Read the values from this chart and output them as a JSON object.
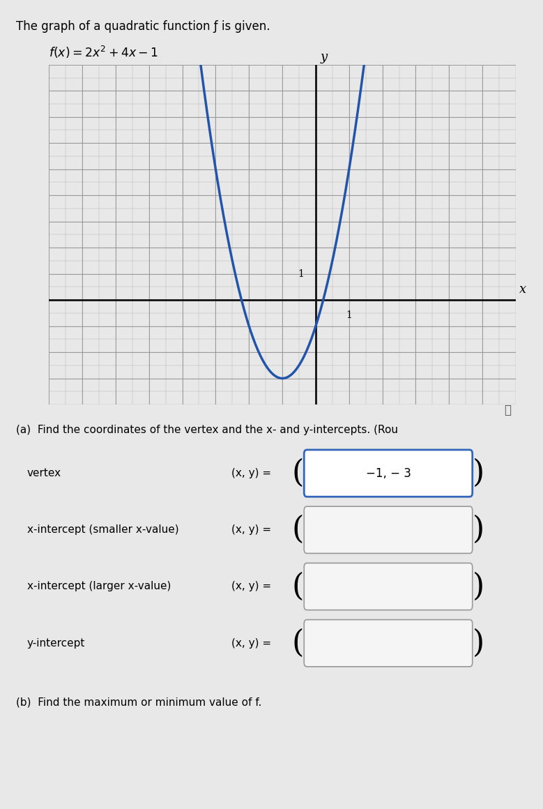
{
  "title_text": "The graph of a quadratic function ƒ is given.",
  "bg_color": "#e8e8e8",
  "graph_bg": "#d4d4d4",
  "curve_color": "#2255aa",
  "axis_color": "#111111",
  "grid_major_color": "#aaaaaa",
  "grid_minor_color": "#bbbbbb",
  "x_range": [
    -8,
    6
  ],
  "y_range": [
    -4,
    9
  ],
  "x_axis_label": "x",
  "y_axis_label": "y",
  "coeff_a": 2,
  "coeff_b": 4,
  "coeff_c": -1,
  "section_a_text": "(a)  Find the coordinates of the vertex and the x- and y-intercepts. (Rou",
  "vertex_row_label": "vertex",
  "vertex_value": "−1, − 3",
  "xi_small_label": "x-intercept (smaller x-value)",
  "xi_large_label": "x-intercept (larger x-value)",
  "y_int_label": "y-intercept",
  "xy_eq": "(x, y) =",
  "section_b_text": "(b)  Find the maximum or minimum value of f.",
  "info_icon": "ⓘ",
  "box_border_color": "#3366bb",
  "box_fill_color": "#ffffff",
  "empty_box_border": "#999999",
  "empty_box_fill": "#f5f5f5"
}
